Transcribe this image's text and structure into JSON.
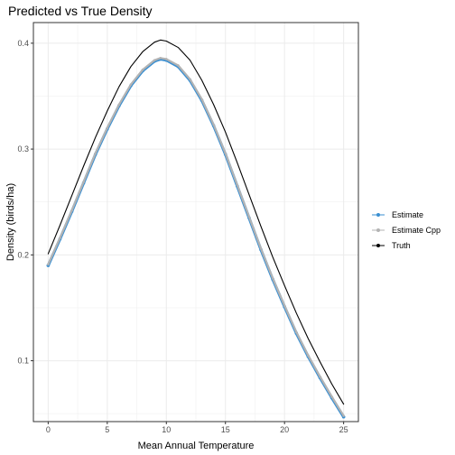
{
  "chart_data": {
    "type": "line",
    "title": "Predicted vs True Density",
    "xlabel": "Mean Annual Temperature",
    "ylabel": "Density (birds/ha)",
    "xlim": [
      -1.25,
      26.25
    ],
    "ylim": [
      0.0425,
      0.4195
    ],
    "x_ticks": [
      0,
      5,
      10,
      15,
      20,
      25
    ],
    "y_ticks": [
      0.1,
      0.2,
      0.3,
      0.4
    ],
    "grid": true,
    "legend_position": "right",
    "series": [
      {
        "name": "Estimate",
        "color": "#3a8fd1",
        "x": [
          0,
          1,
          2,
          3,
          4,
          5,
          6,
          7,
          8,
          9,
          9.5,
          10,
          11,
          12,
          13,
          14,
          15,
          16,
          17,
          18,
          19,
          20,
          21,
          22,
          23,
          24,
          25
        ],
        "y": [
          0.19,
          0.215,
          0.241,
          0.268,
          0.295,
          0.319,
          0.341,
          0.36,
          0.374,
          0.383,
          0.385,
          0.384,
          0.378,
          0.365,
          0.346,
          0.322,
          0.295,
          0.265,
          0.235,
          0.205,
          0.177,
          0.151,
          0.126,
          0.104,
          0.084,
          0.065,
          0.047
        ]
      },
      {
        "name": "Estimate Cpp",
        "color": "#b3b3b3",
        "x": [
          0,
          1,
          2,
          3,
          4,
          5,
          6,
          7,
          8,
          9,
          9.5,
          10,
          11,
          12,
          13,
          14,
          15,
          16,
          17,
          18,
          19,
          20,
          21,
          22,
          23,
          24,
          25
        ],
        "y": [
          0.191,
          0.216,
          0.242,
          0.269,
          0.296,
          0.32,
          0.342,
          0.361,
          0.375,
          0.384,
          0.386,
          0.385,
          0.379,
          0.366,
          0.347,
          0.323,
          0.296,
          0.266,
          0.236,
          0.206,
          0.178,
          0.152,
          0.127,
          0.105,
          0.085,
          0.066,
          0.048
        ]
      },
      {
        "name": "Truth",
        "color": "#000000",
        "x": [
          0,
          1,
          2,
          3,
          4,
          5,
          6,
          7,
          8,
          9,
          9.5,
          10,
          11,
          12,
          13,
          14,
          15,
          16,
          17,
          18,
          19,
          20,
          21,
          22,
          23,
          24,
          25
        ],
        "y": [
          0.201,
          0.228,
          0.256,
          0.284,
          0.311,
          0.336,
          0.359,
          0.378,
          0.392,
          0.401,
          0.403,
          0.402,
          0.396,
          0.384,
          0.365,
          0.342,
          0.316,
          0.287,
          0.257,
          0.227,
          0.198,
          0.171,
          0.145,
          0.121,
          0.099,
          0.078,
          0.059
        ]
      }
    ]
  }
}
